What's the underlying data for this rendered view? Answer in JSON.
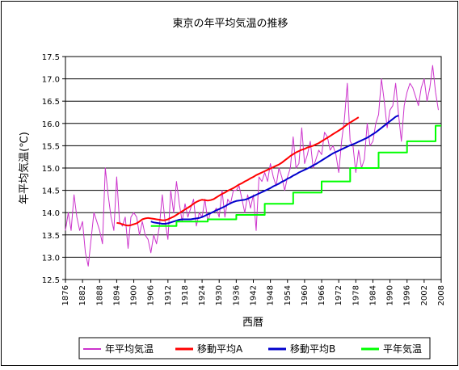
{
  "chart_data": {
    "type": "line",
    "title": "東京の年平均気温の推移",
    "xlabel": "西暦",
    "ylabel": "年平均気温(℃)",
    "xlim": [
      1876,
      2008
    ],
    "ylim": [
      12.5,
      17.5
    ],
    "x_ticks": [
      "1876",
      "1882",
      "1888",
      "1894",
      "1900",
      "1906",
      "1912",
      "1918",
      "1924",
      "1930",
      "1936",
      "1942",
      "1948",
      "1954",
      "1960",
      "1966",
      "1972",
      "1978",
      "1984",
      "1990",
      "1996",
      "2002",
      "2008"
    ],
    "y_ticks": [
      "12.5",
      "13.0",
      "13.5",
      "14.0",
      "14.5",
      "15.0",
      "15.5",
      "16.0",
      "16.5",
      "17.0",
      "17.5"
    ],
    "grid": "horizontal",
    "legend_position": "bottom",
    "colors": {
      "annual": "#cc33cc",
      "moving_a": "#ff0000",
      "moving_b": "#0000cc",
      "normal": "#00ff00"
    },
    "series": [
      {
        "name": "年平均気温",
        "x_start": 1876,
        "values": [
          13.6,
          14.0,
          13.6,
          14.4,
          13.9,
          13.6,
          13.8,
          13.1,
          12.8,
          13.4,
          14.0,
          13.8,
          13.6,
          13.3,
          15.0,
          14.4,
          13.9,
          13.6,
          14.8,
          13.8,
          13.7,
          13.9,
          13.2,
          13.9,
          14.0,
          13.9,
          13.5,
          13.8,
          13.5,
          13.4,
          13.1,
          13.5,
          13.3,
          13.7,
          14.4,
          13.8,
          13.4,
          14.5,
          14.0,
          14.7,
          14.2,
          13.8,
          14.2,
          13.9,
          14.1,
          14.3,
          13.7,
          14.0,
          13.9,
          14.3,
          13.8,
          14.0,
          14.0,
          14.1,
          13.9,
          14.5,
          13.9,
          14.3,
          14.2,
          14.5,
          14.5,
          14.6,
          14.3,
          14.0,
          14.4,
          14.1,
          14.4,
          13.6,
          14.8,
          14.7,
          14.9,
          14.7,
          15.1,
          14.8,
          14.6,
          15.0,
          14.8,
          14.5,
          14.8,
          15.0,
          15.7,
          15.0,
          15.1,
          15.9,
          15.1,
          15.3,
          15.6,
          15.0,
          15.2,
          15.4,
          15.3,
          15.8,
          15.7,
          15.4,
          15.5,
          15.3,
          14.9,
          15.6,
          16.1,
          16.9,
          15.6,
          15.5,
          14.9,
          15.4,
          15.0,
          15.2,
          16.0,
          15.5,
          15.6,
          16.0,
          16.2,
          17.0,
          16.5,
          15.9,
          16.3,
          16.4,
          16.9,
          16.2,
          15.6,
          16.4,
          16.7,
          16.9,
          16.8,
          16.6,
          16.4,
          16.8,
          17.0,
          16.5,
          16.8,
          17.3,
          16.7,
          16.3
        ]
      },
      {
        "name": "移動平均A",
        "x_start": 1894,
        "values": [
          13.77,
          13.76,
          13.74,
          13.72,
          13.71,
          13.72,
          13.74,
          13.76,
          13.8,
          13.85,
          13.87,
          13.88,
          13.87,
          13.86,
          13.85,
          13.84,
          13.83,
          13.83,
          13.85,
          13.88,
          13.91,
          13.95,
          13.99,
          14.03,
          14.07,
          14.11,
          14.15,
          14.2,
          14.24,
          14.27,
          14.29,
          14.28,
          14.27,
          14.28,
          14.3,
          14.34,
          14.38,
          14.42,
          14.45,
          14.49,
          14.52,
          14.55,
          14.59,
          14.63,
          14.66,
          14.7,
          14.73,
          14.77,
          14.8,
          14.84,
          14.87,
          14.9,
          14.93,
          14.96,
          14.99,
          15.02,
          15.05,
          15.08,
          15.12,
          15.17,
          15.22,
          15.27,
          15.31,
          15.35,
          15.38,
          15.41,
          15.43,
          15.46,
          15.48,
          15.5,
          15.53,
          15.56,
          15.6,
          15.64,
          15.68,
          15.72,
          15.76,
          15.8,
          15.84,
          15.88,
          15.93,
          15.98,
          16.02,
          16.06,
          16.1,
          16.14
        ]
      },
      {
        "name": "移動平均B",
        "x_start": 1906,
        "values": [
          13.8,
          13.78,
          13.77,
          13.76,
          13.75,
          13.75,
          13.76,
          13.78,
          13.8,
          13.82,
          13.84,
          13.85,
          13.85,
          13.85,
          13.85,
          13.86,
          13.87,
          13.88,
          13.9,
          13.93,
          13.96,
          13.99,
          14.02,
          14.05,
          14.08,
          14.11,
          14.14,
          14.18,
          14.21,
          14.24,
          14.26,
          14.27,
          14.28,
          14.29,
          14.31,
          14.34,
          14.37,
          14.4,
          14.43,
          14.46,
          14.49,
          14.52,
          14.55,
          14.59,
          14.62,
          14.65,
          14.69,
          14.72,
          14.76,
          14.79,
          14.83,
          14.86,
          14.9,
          14.93,
          14.96,
          14.99,
          15.02,
          15.06,
          15.09,
          15.13,
          15.17,
          15.21,
          15.25,
          15.29,
          15.33,
          15.36,
          15.39,
          15.42,
          15.45,
          15.48,
          15.51,
          15.53,
          15.56,
          15.59,
          15.62,
          15.65,
          15.68,
          15.72,
          15.76,
          15.8,
          15.85,
          15.9,
          15.95,
          16.0,
          16.05,
          16.1,
          16.15,
          16.18
        ]
      },
      {
        "name": "平年気温",
        "steps": [
          {
            "from": 1906,
            "to": 1915,
            "value": 13.7
          },
          {
            "from": 1915,
            "to": 1926,
            "value": 13.8
          },
          {
            "from": 1926,
            "to": 1936,
            "value": 13.85
          },
          {
            "from": 1936,
            "to": 1946,
            "value": 13.95
          },
          {
            "from": 1946,
            "to": 1956,
            "value": 14.2
          },
          {
            "from": 1956,
            "to": 1966,
            "value": 14.45
          },
          {
            "from": 1966,
            "to": 1976,
            "value": 14.7
          },
          {
            "from": 1976,
            "to": 1986,
            "value": 15.0
          },
          {
            "from": 1986,
            "to": 1996,
            "value": 15.35
          },
          {
            "from": 1996,
            "to": 2006,
            "value": 15.6
          },
          {
            "from": 2006,
            "to": 2009,
            "value": 15.95
          }
        ]
      }
    ]
  }
}
